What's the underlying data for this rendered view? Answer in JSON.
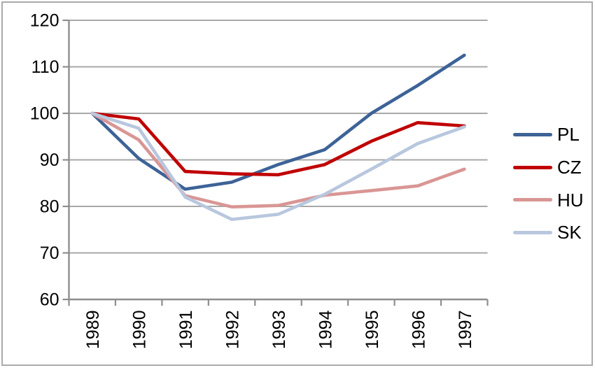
{
  "figure": {
    "background_color": "#FFFFFF",
    "border_color": "#ABABAB"
  },
  "chart_data": {
    "type": "line",
    "title": "",
    "xlabel": "",
    "ylabel": "",
    "categories": [
      "1989",
      "1990",
      "1991",
      "1992",
      "1993",
      "1994",
      "1995",
      "1996",
      "1997"
    ],
    "series": [
      {
        "name": "PL",
        "color": "#3D6397",
        "values": [
          100,
          90.3,
          83.7,
          85.2,
          89.0,
          92.2,
          100.0,
          106.0,
          112.5
        ]
      },
      {
        "name": "CZ",
        "color": "#C00000",
        "values": [
          100,
          98.8,
          87.5,
          87.0,
          86.8,
          89.0,
          94.0,
          98.0,
          97.3
        ]
      },
      {
        "name": "HU",
        "color": "#D99694",
        "values": [
          100,
          94.3,
          82.3,
          79.9,
          80.2,
          82.4,
          83.4,
          84.4,
          88.0
        ]
      },
      {
        "name": "SK",
        "color": "#B8C7DE",
        "values": [
          100,
          96.8,
          82.0,
          77.2,
          78.3,
          82.6,
          88.0,
          93.5,
          97.1
        ]
      }
    ],
    "ylim": [
      60,
      120
    ],
    "yticks": [
      120,
      110,
      100,
      90,
      80,
      70,
      60
    ],
    "grid": true,
    "legend_position": "right",
    "gridline_color": "#A8A8A8",
    "axis_color": "#8E8E8E",
    "tick_label_color": "#000000"
  }
}
